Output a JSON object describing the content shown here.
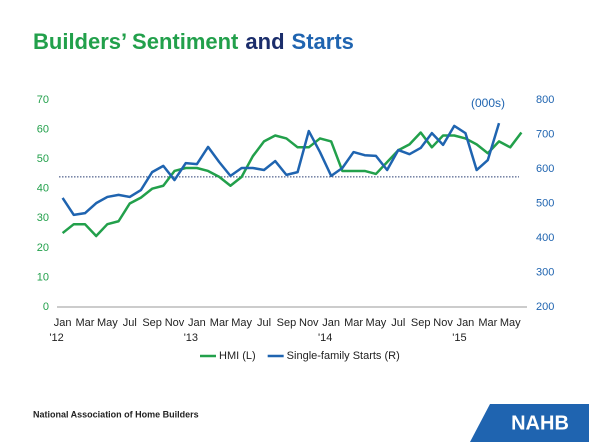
{
  "chart_data": {
    "type": "line",
    "title_parts": [
      {
        "text": "Builders’ Sentiment",
        "color": "#22a04b"
      },
      {
        "text": "and",
        "color": "#1b2d6b"
      },
      {
        "text": "Starts",
        "color": "#1f64b0"
      }
    ],
    "categories": [
      "Jan '12",
      null,
      "Mar",
      null,
      "May",
      null,
      "Jul",
      null,
      "Sep",
      null,
      "Nov",
      null,
      "Jan '13",
      null,
      "Mar",
      null,
      "May",
      null,
      "Jul",
      null,
      "Sep",
      null,
      "Nov",
      null,
      "Jan '14",
      null,
      "Mar",
      null,
      "May",
      null,
      "Jul",
      null,
      "Sep",
      null,
      "Nov",
      null,
      "Jan '15",
      null,
      "Mar",
      null,
      "May",
      null
    ],
    "series": [
      {
        "name": "HMI (L)",
        "color": "#22a04b",
        "axis": "y",
        "values": [
          25,
          28,
          28,
          24,
          28,
          29,
          35,
          37,
          40,
          41,
          46,
          47,
          47,
          46,
          44,
          41,
          44,
          51,
          56,
          58,
          57,
          54,
          54,
          57,
          56,
          46,
          46,
          46,
          45,
          49,
          53,
          55,
          59,
          54,
          58,
          58,
          57,
          55,
          52,
          56,
          54,
          59
        ]
      },
      {
        "name": "Single-family Starts (R)",
        "color": "#1f64b0",
        "axis": "y2",
        "values": [
          516,
          467,
          472,
          501,
          519,
          525,
          519,
          539,
          591,
          609,
          568,
          617,
          614,
          664,
          620,
          580,
          603,
          603,
          597,
          623,
          583,
          591,
          710,
          649,
          580,
          603,
          649,
          640,
          638,
          597,
          655,
          643,
          661,
          704,
          670,
          725,
          704,
          597,
          626,
          733,
          null,
          null
        ]
      }
    ],
    "reference_line": {
      "value": 44,
      "axis": "y",
      "color": "#2a3f73"
    },
    "ylim": [
      0,
      70
    ],
    "yticks": [
      0,
      10,
      20,
      30,
      40,
      50,
      60,
      70
    ],
    "y2lim": [
      200,
      800
    ],
    "y2ticks": [
      200,
      300,
      400,
      500,
      600,
      700,
      800
    ],
    "y2_annotation": "(000s)",
    "legend": "bottom",
    "source": "National Association of Home Builders",
    "logo": "NAHB"
  }
}
